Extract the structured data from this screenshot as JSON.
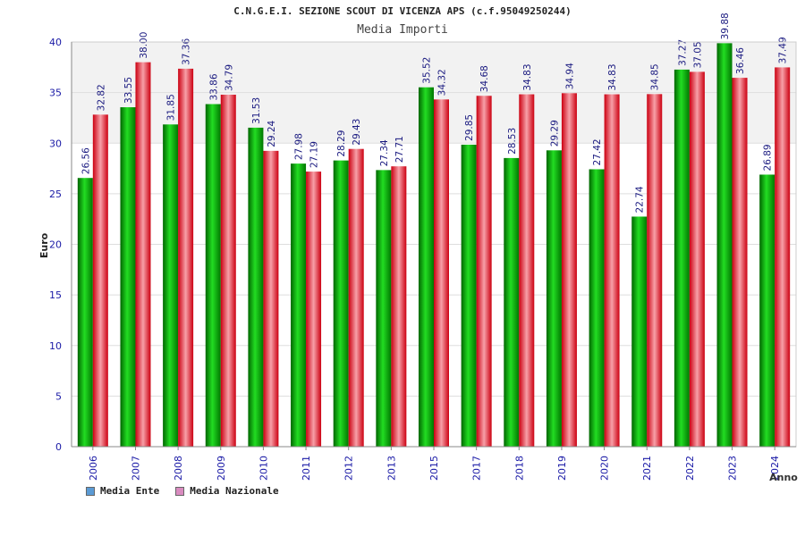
{
  "title": "C.N.G.E.I. SEZIONE SCOUT DI VICENZA APS (c.f.95049250244)",
  "subtitle": "Media Importi",
  "colors": {
    "ente": "#00aa00",
    "nazionale": "#e8202f",
    "legend_ente": "#5b9bd5",
    "legend_nazionale": "#d98bbf",
    "axis_text": "#1a1aa6",
    "value_label": "#1a1aa6"
  },
  "chart_data": {
    "type": "bar",
    "title": "C.N.G.E.I. SEZIONE SCOUT DI VICENZA APS (c.f.95049250244)",
    "subtitle": "Media Importi",
    "xlabel": "Anno",
    "ylabel": "Euro",
    "ylim": [
      0,
      40
    ],
    "yticks": [
      0,
      5,
      10,
      15,
      20,
      25,
      30,
      35,
      40
    ],
    "grid": true,
    "legend_position": "bottom-left",
    "categories": [
      "2006",
      "2007",
      "2008",
      "2009",
      "2010",
      "2011",
      "2012",
      "2013",
      "2015",
      "2017",
      "2018",
      "2019",
      "2020",
      "2021",
      "2022",
      "2023",
      "2024"
    ],
    "series": [
      {
        "name": "Media Ente",
        "values": [
          26.56,
          33.55,
          31.85,
          33.86,
          31.53,
          27.98,
          28.29,
          27.34,
          35.52,
          29.85,
          28.53,
          29.29,
          27.42,
          22.74,
          37.27,
          39.88,
          26.89
        ],
        "labels": [
          "26.56",
          "33.55",
          "31.85",
          "33.86",
          "31.53",
          "27.98",
          "28.29",
          "27.34",
          "35.52",
          "29.85",
          "28.53",
          "29.29",
          "27.42",
          "22.74",
          "37.27",
          "39.88",
          "26.89"
        ]
      },
      {
        "name": "Media Nazionale",
        "values": [
          32.82,
          38.0,
          37.36,
          34.79,
          29.24,
          27.19,
          29.43,
          27.71,
          34.32,
          34.68,
          34.83,
          34.94,
          34.83,
          34.85,
          37.05,
          36.46,
          37.49
        ],
        "labels": [
          "32.82",
          "38.00",
          "37.36",
          "34.79",
          "29.24",
          "27.19",
          "29.43",
          "27.71",
          "34.32",
          "34.68",
          "34.83",
          "34.94",
          "34.83",
          "34.85",
          "37.05",
          "36.46",
          "37.49"
        ]
      }
    ]
  }
}
